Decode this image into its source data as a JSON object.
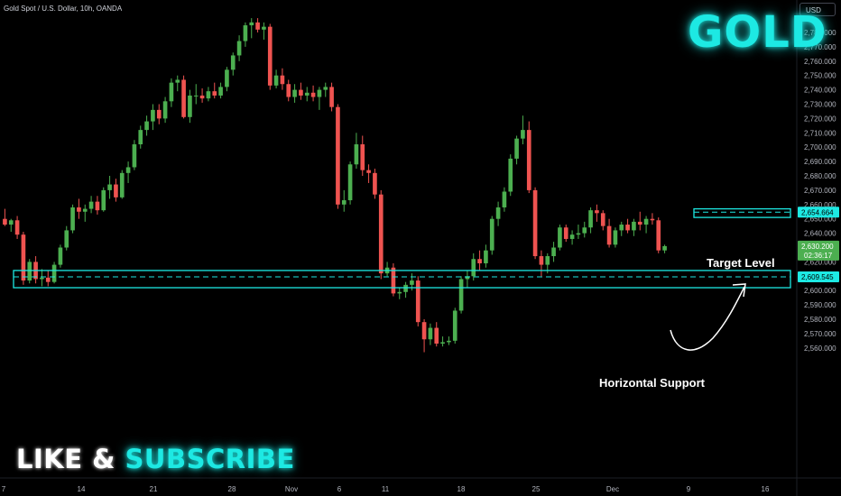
{
  "header": {
    "symbol_title": "Gold Spot / U.S. Dollar, 10h, OANDA",
    "currency": "USD"
  },
  "overlay": {
    "title": "GOLD",
    "promo_like": "LIKE &",
    "promo_subscribe": "SUBSCRIBE"
  },
  "annotations": {
    "target_label": "Target Level",
    "support_label": "Horizontal Support",
    "target_level": 2654.664,
    "support_level": 2609.545,
    "support_zone": [
      2602,
      2614
    ],
    "target_zone": [
      2651,
      2657
    ]
  },
  "price_axis": {
    "ticks": [
      "2,780.000",
      "2,770.000",
      "2,760.000",
      "2,750.000",
      "2,740.000",
      "2,730.000",
      "2,720.000",
      "2,710.000",
      "2,700.000",
      "2,690.000",
      "2,680.000",
      "2,670.000",
      "2,660.000",
      "2,650.000",
      "2,640.000",
      "2,630.000",
      "2,620.000",
      "2,610.000",
      "2,600.000",
      "2,590.000",
      "2,580.000",
      "2,570.000",
      "2,560.000"
    ],
    "current_price": "2,630.200",
    "countdown": "02:36:17",
    "target_tag": "2,654.664",
    "support_tag": "2,609.545"
  },
  "time_axis": {
    "ticks": [
      "7",
      "14",
      "21",
      "28",
      "Nov",
      "6",
      "11",
      "18",
      "25",
      "Dec",
      "9",
      "16"
    ]
  },
  "colors": {
    "up": "#26a69a",
    "up_body": "#4caf50",
    "down": "#ef5350",
    "accent": "#1de9e3",
    "background": "#000000"
  },
  "chart_data": {
    "type": "candlestick",
    "symbol": "XAUUSD",
    "timeframe": "10h",
    "ylim": [
      2552,
      2796
    ],
    "candles": [
      {
        "o": 2650,
        "h": 2657,
        "l": 2645,
        "c": 2646
      },
      {
        "o": 2646,
        "h": 2650,
        "l": 2641,
        "c": 2649
      },
      {
        "o": 2649,
        "h": 2652,
        "l": 2636,
        "c": 2639
      },
      {
        "o": 2639,
        "h": 2641,
        "l": 2604,
        "c": 2607
      },
      {
        "o": 2607,
        "h": 2622,
        "l": 2605,
        "c": 2620
      },
      {
        "o": 2620,
        "h": 2624,
        "l": 2605,
        "c": 2608
      },
      {
        "o": 2608,
        "h": 2615,
        "l": 2603,
        "c": 2609
      },
      {
        "o": 2609,
        "h": 2614,
        "l": 2603,
        "c": 2606
      },
      {
        "o": 2606,
        "h": 2620,
        "l": 2605,
        "c": 2618
      },
      {
        "o": 2618,
        "h": 2632,
        "l": 2616,
        "c": 2630
      },
      {
        "o": 2630,
        "h": 2645,
        "l": 2628,
        "c": 2642
      },
      {
        "o": 2642,
        "h": 2660,
        "l": 2640,
        "c": 2658
      },
      {
        "o": 2658,
        "h": 2664,
        "l": 2650,
        "c": 2655
      },
      {
        "o": 2655,
        "h": 2660,
        "l": 2648,
        "c": 2657
      },
      {
        "o": 2657,
        "h": 2666,
        "l": 2654,
        "c": 2662
      },
      {
        "o": 2662,
        "h": 2666,
        "l": 2653,
        "c": 2656
      },
      {
        "o": 2656,
        "h": 2672,
        "l": 2655,
        "c": 2670
      },
      {
        "o": 2670,
        "h": 2680,
        "l": 2664,
        "c": 2674
      },
      {
        "o": 2674,
        "h": 2678,
        "l": 2662,
        "c": 2665
      },
      {
        "o": 2665,
        "h": 2684,
        "l": 2664,
        "c": 2682
      },
      {
        "o": 2682,
        "h": 2690,
        "l": 2675,
        "c": 2686
      },
      {
        "o": 2686,
        "h": 2705,
        "l": 2684,
        "c": 2702
      },
      {
        "o": 2702,
        "h": 2715,
        "l": 2699,
        "c": 2712
      },
      {
        "o": 2712,
        "h": 2722,
        "l": 2708,
        "c": 2718
      },
      {
        "o": 2718,
        "h": 2730,
        "l": 2712,
        "c": 2726
      },
      {
        "o": 2726,
        "h": 2730,
        "l": 2716,
        "c": 2720
      },
      {
        "o": 2720,
        "h": 2735,
        "l": 2717,
        "c": 2732
      },
      {
        "o": 2732,
        "h": 2748,
        "l": 2728,
        "c": 2745
      },
      {
        "o": 2745,
        "h": 2750,
        "l": 2739,
        "c": 2747
      },
      {
        "o": 2747,
        "h": 2750,
        "l": 2720,
        "c": 2721
      },
      {
        "o": 2721,
        "h": 2740,
        "l": 2717,
        "c": 2736
      },
      {
        "o": 2736,
        "h": 2744,
        "l": 2730,
        "c": 2736
      },
      {
        "o": 2736,
        "h": 2741,
        "l": 2731,
        "c": 2734
      },
      {
        "o": 2734,
        "h": 2742,
        "l": 2732,
        "c": 2739
      },
      {
        "o": 2739,
        "h": 2745,
        "l": 2734,
        "c": 2736
      },
      {
        "o": 2736,
        "h": 2745,
        "l": 2734,
        "c": 2742
      },
      {
        "o": 2742,
        "h": 2756,
        "l": 2739,
        "c": 2754
      },
      {
        "o": 2754,
        "h": 2766,
        "l": 2750,
        "c": 2764
      },
      {
        "o": 2764,
        "h": 2778,
        "l": 2760,
        "c": 2774
      },
      {
        "o": 2774,
        "h": 2787,
        "l": 2770,
        "c": 2785
      },
      {
        "o": 2785,
        "h": 2790,
        "l": 2776,
        "c": 2787
      },
      {
        "o": 2787,
        "h": 2790,
        "l": 2780,
        "c": 2782
      },
      {
        "o": 2782,
        "h": 2787,
        "l": 2775,
        "c": 2784
      },
      {
        "o": 2784,
        "h": 2786,
        "l": 2740,
        "c": 2743
      },
      {
        "o": 2743,
        "h": 2754,
        "l": 2741,
        "c": 2750
      },
      {
        "o": 2750,
        "h": 2755,
        "l": 2740,
        "c": 2744
      },
      {
        "o": 2744,
        "h": 2747,
        "l": 2732,
        "c": 2735
      },
      {
        "o": 2735,
        "h": 2744,
        "l": 2731,
        "c": 2740
      },
      {
        "o": 2740,
        "h": 2745,
        "l": 2733,
        "c": 2736
      },
      {
        "o": 2736,
        "h": 2742,
        "l": 2732,
        "c": 2738
      },
      {
        "o": 2738,
        "h": 2743,
        "l": 2732,
        "c": 2735
      },
      {
        "o": 2735,
        "h": 2742,
        "l": 2726,
        "c": 2740
      },
      {
        "o": 2740,
        "h": 2745,
        "l": 2735,
        "c": 2742
      },
      {
        "o": 2742,
        "h": 2745,
        "l": 2725,
        "c": 2728
      },
      {
        "o": 2728,
        "h": 2730,
        "l": 2657,
        "c": 2660
      },
      {
        "o": 2660,
        "h": 2670,
        "l": 2655,
        "c": 2663
      },
      {
        "o": 2663,
        "h": 2690,
        "l": 2660,
        "c": 2688
      },
      {
        "o": 2688,
        "h": 2710,
        "l": 2685,
        "c": 2702
      },
      {
        "o": 2702,
        "h": 2708,
        "l": 2680,
        "c": 2684
      },
      {
        "o": 2684,
        "h": 2688,
        "l": 2675,
        "c": 2682
      },
      {
        "o": 2682,
        "h": 2685,
        "l": 2664,
        "c": 2667
      },
      {
        "o": 2667,
        "h": 2670,
        "l": 2608,
        "c": 2612
      },
      {
        "o": 2612,
        "h": 2620,
        "l": 2610,
        "c": 2616
      },
      {
        "o": 2616,
        "h": 2619,
        "l": 2596,
        "c": 2598
      },
      {
        "o": 2598,
        "h": 2602,
        "l": 2594,
        "c": 2599
      },
      {
        "o": 2599,
        "h": 2606,
        "l": 2595,
        "c": 2604
      },
      {
        "o": 2604,
        "h": 2612,
        "l": 2600,
        "c": 2607
      },
      {
        "o": 2607,
        "h": 2610,
        "l": 2575,
        "c": 2578
      },
      {
        "o": 2578,
        "h": 2580,
        "l": 2557,
        "c": 2566
      },
      {
        "o": 2566,
        "h": 2577,
        "l": 2562,
        "c": 2574
      },
      {
        "o": 2574,
        "h": 2578,
        "l": 2561,
        "c": 2563
      },
      {
        "o": 2563,
        "h": 2568,
        "l": 2561,
        "c": 2564
      },
      {
        "o": 2564,
        "h": 2568,
        "l": 2562,
        "c": 2565
      },
      {
        "o": 2565,
        "h": 2588,
        "l": 2563,
        "c": 2586
      },
      {
        "o": 2586,
        "h": 2610,
        "l": 2584,
        "c": 2608
      },
      {
        "o": 2608,
        "h": 2614,
        "l": 2602,
        "c": 2610
      },
      {
        "o": 2610,
        "h": 2626,
        "l": 2607,
        "c": 2622
      },
      {
        "o": 2622,
        "h": 2628,
        "l": 2614,
        "c": 2619
      },
      {
        "o": 2619,
        "h": 2632,
        "l": 2616,
        "c": 2628
      },
      {
        "o": 2628,
        "h": 2652,
        "l": 2625,
        "c": 2650
      },
      {
        "o": 2650,
        "h": 2662,
        "l": 2645,
        "c": 2658
      },
      {
        "o": 2658,
        "h": 2672,
        "l": 2655,
        "c": 2669
      },
      {
        "o": 2669,
        "h": 2695,
        "l": 2666,
        "c": 2692
      },
      {
        "o": 2692,
        "h": 2708,
        "l": 2688,
        "c": 2706
      },
      {
        "o": 2706,
        "h": 2722,
        "l": 2702,
        "c": 2712
      },
      {
        "o": 2712,
        "h": 2718,
        "l": 2668,
        "c": 2670
      },
      {
        "o": 2670,
        "h": 2672,
        "l": 2622,
        "c": 2624
      },
      {
        "o": 2624,
        "h": 2628,
        "l": 2610,
        "c": 2618
      },
      {
        "o": 2618,
        "h": 2626,
        "l": 2612,
        "c": 2624
      },
      {
        "o": 2624,
        "h": 2634,
        "l": 2620,
        "c": 2630
      },
      {
        "o": 2630,
        "h": 2646,
        "l": 2628,
        "c": 2644
      },
      {
        "o": 2644,
        "h": 2646,
        "l": 2634,
        "c": 2636
      },
      {
        "o": 2636,
        "h": 2642,
        "l": 2632,
        "c": 2639
      },
      {
        "o": 2639,
        "h": 2646,
        "l": 2636,
        "c": 2640
      },
      {
        "o": 2640,
        "h": 2648,
        "l": 2637,
        "c": 2644
      },
      {
        "o": 2644,
        "h": 2658,
        "l": 2640,
        "c": 2656
      },
      {
        "o": 2656,
        "h": 2660,
        "l": 2648,
        "c": 2654
      },
      {
        "o": 2654,
        "h": 2656,
        "l": 2642,
        "c": 2645
      },
      {
        "o": 2645,
        "h": 2650,
        "l": 2630,
        "c": 2632
      },
      {
        "o": 2632,
        "h": 2644,
        "l": 2630,
        "c": 2642
      },
      {
        "o": 2642,
        "h": 2648,
        "l": 2638,
        "c": 2646
      },
      {
        "o": 2646,
        "h": 2650,
        "l": 2640,
        "c": 2642
      },
      {
        "o": 2642,
        "h": 2650,
        "l": 2638,
        "c": 2648
      },
      {
        "o": 2648,
        "h": 2655,
        "l": 2642,
        "c": 2646
      },
      {
        "o": 2646,
        "h": 2652,
        "l": 2640,
        "c": 2650
      },
      {
        "o": 2650,
        "h": 2654,
        "l": 2646,
        "c": 2649
      },
      {
        "o": 2649,
        "h": 2651,
        "l": 2626,
        "c": 2628
      },
      {
        "o": 2628,
        "h": 2632,
        "l": 2626,
        "c": 2631
      }
    ]
  }
}
